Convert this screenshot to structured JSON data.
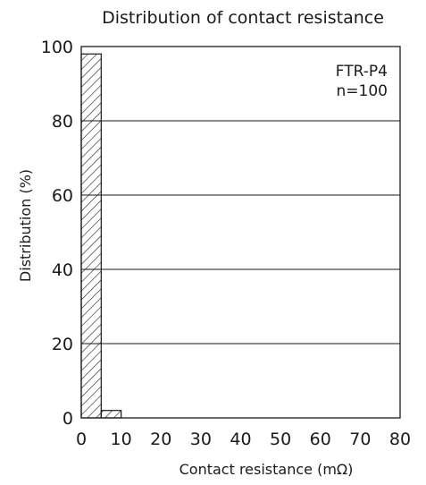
{
  "chart_data": {
    "type": "bar",
    "title": "Distribution of contact resistance",
    "xlabel": "Contact resistance (mΩ)",
    "ylabel": "Distribution (%)",
    "xlim": [
      0,
      80
    ],
    "ylim": [
      0,
      100
    ],
    "xticks": [
      0,
      10,
      20,
      30,
      40,
      50,
      60,
      70,
      80
    ],
    "yticks": [
      0,
      20,
      40,
      60,
      80,
      100
    ],
    "bins": [
      {
        "x0": 0,
        "x1": 5,
        "value": 98
      },
      {
        "x0": 5,
        "x1": 10,
        "value": 2
      }
    ],
    "annotations": [
      "FTR-P4",
      "n=100"
    ],
    "grid": "horizontal",
    "bar_fill": "diagonal-hatch",
    "colors": {
      "line": "#1a1a1a",
      "background": "#ffffff"
    }
  }
}
